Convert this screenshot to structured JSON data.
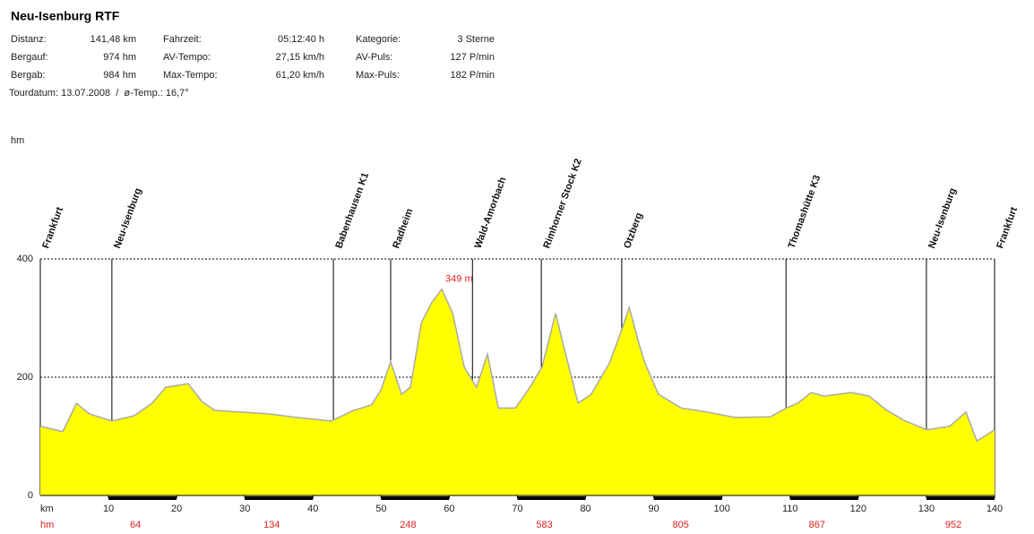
{
  "chart_data": {
    "type": "area",
    "title": "Neu-Isenburg RTF",
    "stats": [
      [
        [
          "Distanz:",
          "141,48 km"
        ],
        [
          "Fahrzeit:",
          "05:12:40 h"
        ],
        [
          "Kategorie:",
          "3 Sterne"
        ]
      ],
      [
        [
          "Bergauf:",
          "974 hm"
        ],
        [
          "AV-Tempo:",
          "27,15 km/h"
        ],
        [
          "AV-Puls:",
          "127 P/min"
        ]
      ],
      [
        [
          "Bergab:",
          "984 hm"
        ],
        [
          "Max-Tempo:",
          "61,20 km/h"
        ],
        [
          "Max-Puls:",
          "182 P/min"
        ]
      ]
    ],
    "tour_info": "Tourdatum: 13.07.2008  /  ø-Temp.: 16,7°",
    "ylabel": "hm",
    "xlabel": "km",
    "xlim": [
      0,
      140
    ],
    "ylim": [
      0,
      400
    ],
    "yticks": [
      0,
      200,
      400
    ],
    "xticks": [
      10,
      20,
      30,
      40,
      50,
      60,
      70,
      80,
      90,
      100,
      110,
      120,
      130,
      140
    ],
    "color": "#ffff00",
    "x": [
      0,
      3.3,
      5.3,
      7.2,
      10.5,
      13.8,
      16.4,
      18.4,
      21.7,
      23.7,
      25.6,
      29.6,
      33.5,
      37.5,
      42.7,
      46,
      48.6,
      50,
      51.4,
      53,
      54.3,
      55.9,
      57.4,
      58.9,
      60.5,
      62.2,
      64,
      65.6,
      67.2,
      69.7,
      71.6,
      73.6,
      75.6,
      76.9,
      78.9,
      80.8,
      83.5,
      85.2,
      86.4,
      87.7,
      88.7,
      90.7,
      94,
      97.9,
      101.9,
      107.1,
      109.5,
      111.1,
      113.1,
      115,
      117,
      119,
      121.6,
      124.2,
      126.9,
      130.1,
      133.4,
      135.8,
      137.4,
      140
    ],
    "values": [
      117,
      108,
      156,
      138,
      126,
      135,
      156,
      183,
      189,
      159,
      144,
      141,
      138,
      132,
      126,
      144,
      153,
      179,
      226,
      171,
      183,
      292,
      326,
      349,
      308,
      217,
      183,
      239,
      148,
      148,
      179,
      217,
      308,
      247,
      156,
      171,
      224,
      277,
      318,
      262,
      224,
      171,
      148,
      141,
      132,
      133,
      148,
      156,
      174,
      168,
      171,
      174,
      168,
      144,
      126,
      111,
      117,
      141,
      92,
      111
    ],
    "waypoints": [
      {
        "name": "Frankfurt",
        "km": 0
      },
      {
        "name": "Neu-Isenburg",
        "km": 10.5
      },
      {
        "name": "Babenhausen K1",
        "km": 43
      },
      {
        "name": "Radheim",
        "km": 51.4
      },
      {
        "name": "Wald-Amorbach",
        "km": 63.4
      },
      {
        "name": "Rimhorner Stock K2",
        "km": 73.5
      },
      {
        "name": "Otzberg",
        "km": 85.3
      },
      {
        "name": "Thomashütte K3",
        "km": 109.4
      },
      {
        "name": "Neu-Isenburg",
        "km": 130
      },
      {
        "name": "Frankfurt",
        "km": 140
      }
    ],
    "annotation": {
      "label": "349 m",
      "x": 58.9,
      "value": 349
    },
    "climb_label": "hm",
    "climb_values": [
      64,
      134,
      248,
      583,
      805,
      867,
      952
    ]
  }
}
